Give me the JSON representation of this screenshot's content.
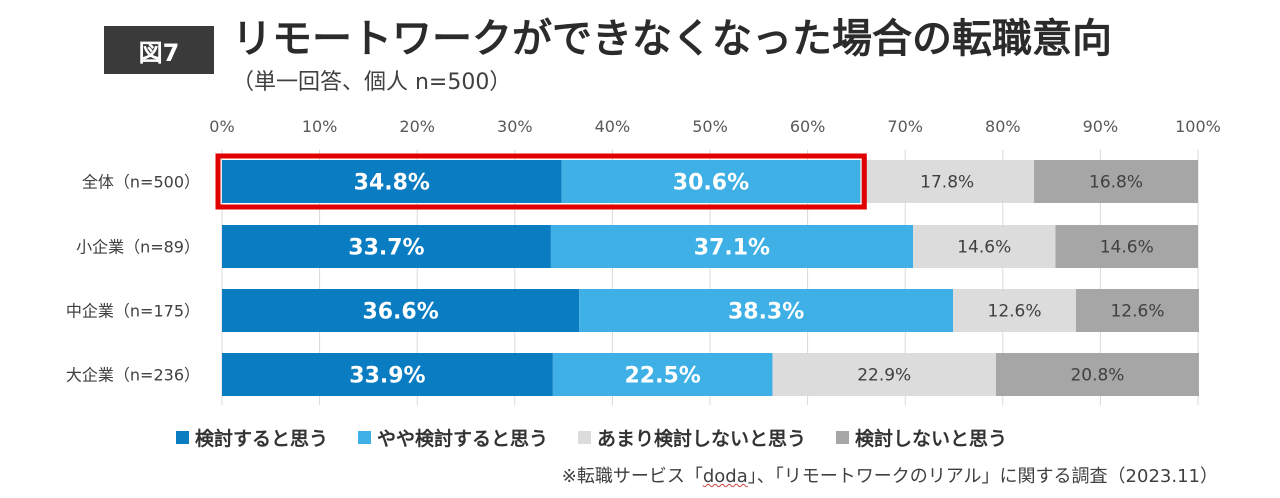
{
  "figure_label": "図7",
  "chart_data": {
    "type": "bar",
    "orientation": "horizontal",
    "stacked": true,
    "title": "リモートワークができなくなった場合の転職意向",
    "subtitle": "（単一回答、個人 n=500）",
    "xlim": [
      0,
      100
    ],
    "x_ticks": [
      "0%",
      "10%",
      "20%",
      "30%",
      "40%",
      "50%",
      "60%",
      "70%",
      "80%",
      "90%",
      "100%"
    ],
    "categories": [
      "全体（n=500）",
      "小企業（n=89）",
      "中企業（n=175）",
      "大企業（n=236）"
    ],
    "series": [
      {
        "name": "検討すると思う",
        "color": "#0a7dc2",
        "label_color": "#ffffff",
        "bold": true,
        "values": [
          34.8,
          33.7,
          36.6,
          33.9
        ]
      },
      {
        "name": "やや検討すると思う",
        "color": "#3eb0e6",
        "label_color": "#ffffff",
        "bold": true,
        "values": [
          30.6,
          37.1,
          38.3,
          22.5
        ]
      },
      {
        "name": "あまり検討しないと思う",
        "color": "#dcdcdc",
        "label_color": "#404040",
        "bold": false,
        "values": [
          17.8,
          14.6,
          12.6,
          22.9
        ]
      },
      {
        "name": "検討しないと思う",
        "color": "#a6a6a6",
        "label_color": "#404040",
        "bold": false,
        "values": [
          16.8,
          14.6,
          12.6,
          20.8
        ]
      }
    ],
    "highlight": {
      "category_index": 0,
      "through_series_index": 1,
      "color": "#e00000"
    },
    "legend": "bottom"
  },
  "source": {
    "prefix": "※転職サービス「",
    "brand": "doda",
    "suffix": "」、「リモートワークのリアル」に関する調査（2023.11）"
  }
}
